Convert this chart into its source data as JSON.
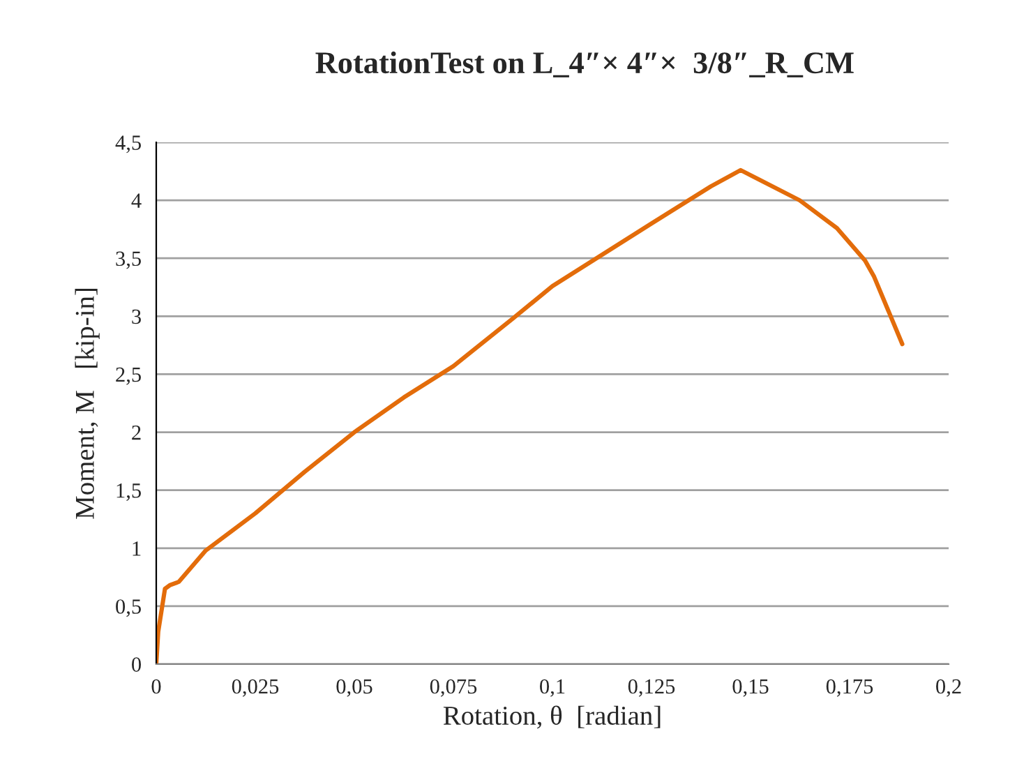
{
  "chart_data": {
    "type": "line",
    "title": "RotationTest on L_4″× 4″×  3/8″_R_CM",
    "xlabel": "Rotation, θ  [radian]",
    "ylabel": "Moment, M   [kip-in]",
    "series": [
      {
        "color": "#e36c0a",
        "x": [
          0,
          0.0005,
          0.0022,
          0.0034,
          0.0057,
          0.0125,
          0.025,
          0.0375,
          0.05,
          0.0625,
          0.075,
          0.09,
          0.1,
          0.125,
          0.14,
          0.1475,
          0.1624,
          0.1718,
          0.1789,
          0.1812,
          0.1883
        ],
        "values": [
          0,
          0.28,
          0.65,
          0.68,
          0.71,
          0.98,
          1.3,
          1.66,
          2.0,
          2.3,
          2.57,
          2.98,
          3.26,
          3.8,
          4.12,
          4.26,
          4.0,
          3.76,
          3.48,
          3.34,
          2.76
        ]
      }
    ],
    "xlim": [
      0,
      0.2
    ],
    "ylim": [
      0,
      4.5
    ],
    "xticks": [
      0,
      {
        "value": 0.025,
        "label": "0,025"
      },
      {
        "value": 0.05,
        "label": "0,05"
      },
      {
        "value": 0.075,
        "label": "0,075"
      },
      {
        "value": 0.1,
        "label": "0,1"
      },
      {
        "value": 0.125,
        "label": "0,125"
      },
      {
        "value": 0.15,
        "label": "0,15"
      },
      {
        "value": 0.175,
        "label": "0,175"
      },
      {
        "value": 0.2,
        "label": "0,2"
      }
    ],
    "yticks": [
      0,
      {
        "value": 0.5,
        "label": "0,5"
      },
      1,
      {
        "value": 1.5,
        "label": "1,5"
      },
      2,
      {
        "value": 2.5,
        "label": "2,5"
      },
      3,
      {
        "value": 3.5,
        "label": "3,5"
      },
      4,
      {
        "value": 4.5,
        "label": "4,5"
      }
    ],
    "grid": "y",
    "legend": false,
    "marker": "none",
    "line_style": "solid"
  }
}
